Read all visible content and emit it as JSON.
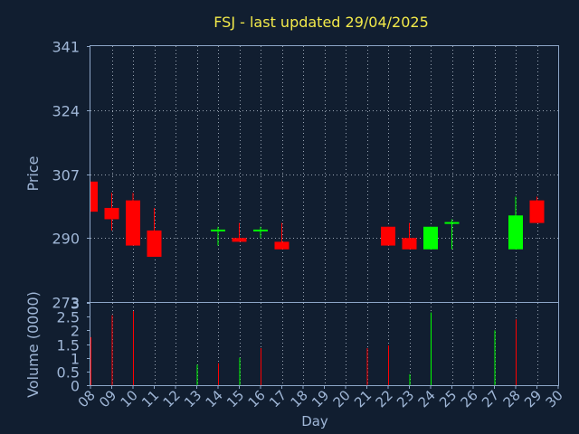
{
  "chart_data": [
    {
      "type": "candlestick",
      "title": "FSJ - last updated 29/04/2025",
      "ylabel": "Price",
      "ylim": [
        273,
        341
      ],
      "yticks": [
        "341",
        "324",
        "307",
        "290",
        "273"
      ],
      "grid": true,
      "up_color": "#00ff00",
      "down_color": "#ff0000",
      "candles": [
        {
          "x": "08",
          "open": 305,
          "close": 297,
          "high": 305,
          "low": 297
        },
        {
          "x": "09",
          "open": 298,
          "close": 295,
          "high": 302,
          "low": 292
        },
        {
          "x": "10",
          "open": 300,
          "close": 288,
          "high": 302,
          "low": 288
        },
        {
          "x": "11",
          "open": 292,
          "close": 285,
          "high": 298,
          "low": 285
        },
        {
          "x": "14",
          "open": 292,
          "close": 292,
          "high": 293,
          "low": 288
        },
        {
          "x": "15",
          "open": 290,
          "close": 289,
          "high": 294,
          "low": 289
        },
        {
          "x": "16",
          "open": 292,
          "close": 292,
          "high": 293,
          "low": 290
        },
        {
          "x": "17",
          "open": 289,
          "close": 287,
          "high": 294,
          "low": 287
        },
        {
          "x": "22",
          "open": 293,
          "close": 288,
          "high": 293,
          "low": 288
        },
        {
          "x": "23",
          "open": 290,
          "close": 287,
          "high": 294,
          "low": 287
        },
        {
          "x": "24",
          "open": 287,
          "close": 293,
          "high": 293,
          "low": 287
        },
        {
          "x": "25",
          "open": 294,
          "close": 294,
          "high": 295,
          "low": 287
        },
        {
          "x": "28",
          "open": 287,
          "close": 296,
          "high": 301,
          "low": 287
        },
        {
          "x": "29",
          "open": 300,
          "close": 294,
          "high": 301,
          "low": 294
        }
      ]
    },
    {
      "type": "bar",
      "ylabel": "Volume (0000)",
      "xlabel": "Day",
      "ylim": [
        0,
        3
      ],
      "yticks": [
        "3",
        "2.5",
        "2",
        "1.5",
        "1",
        "0.5",
        "0"
      ],
      "categories": [
        "08",
        "09",
        "10",
        "11",
        "12",
        "13",
        "14",
        "15",
        "16",
        "17",
        "18",
        "19",
        "20",
        "21",
        "22",
        "23",
        "24",
        "25",
        "26",
        "27",
        "28",
        "29",
        "30"
      ],
      "bars": [
        {
          "x": "09",
          "value": 1.75,
          "color": "#ff0000"
        },
        {
          "x": "10",
          "value": 2.55,
          "color": "#ff0000"
        },
        {
          "x": "11",
          "value": 2.7,
          "color": "#ff0000"
        },
        {
          "x": "14",
          "value": 0.75,
          "color": "#00ff00"
        },
        {
          "x": "15",
          "value": 0.8,
          "color": "#ff0000"
        },
        {
          "x": "16",
          "value": 1.0,
          "color": "#00ff00"
        },
        {
          "x": "17",
          "value": 1.35,
          "color": "#ff0000"
        },
        {
          "x": "22",
          "value": 1.35,
          "color": "#ff0000"
        },
        {
          "x": "23",
          "value": 1.45,
          "color": "#ff0000"
        },
        {
          "x": "24",
          "value": 0.4,
          "color": "#00ff00"
        },
        {
          "x": "25",
          "value": 2.65,
          "color": "#00ff00"
        },
        {
          "x": "28",
          "value": 2.0,
          "color": "#00ff00"
        },
        {
          "x": "29",
          "value": 2.4,
          "color": "#ff0000"
        }
      ]
    }
  ]
}
